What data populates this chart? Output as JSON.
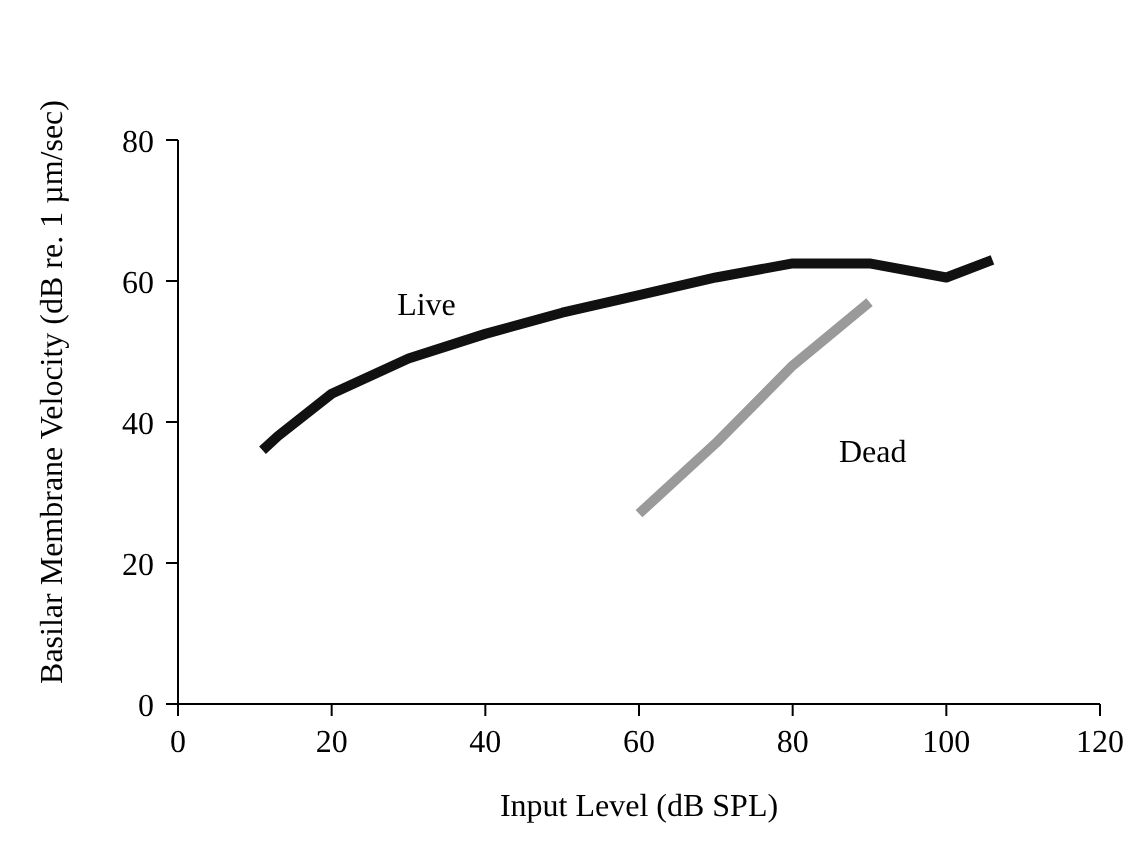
{
  "chart_data": {
    "type": "line",
    "xlabel": "Input Level (dB SPL)",
    "ylabel": "Basilar Membrane Velocity (dB re. 1 µm/sec)",
    "xlim": [
      0,
      120
    ],
    "xticks": [
      0,
      20,
      40,
      60,
      80,
      100,
      120
    ],
    "ylim": [
      0,
      80
    ],
    "yticks": [
      0,
      20,
      40,
      60,
      80
    ],
    "grid": false,
    "marker": "none",
    "line_style": "solid",
    "series": [
      {
        "name": "Live",
        "color": "#111111",
        "x": [
          11,
          13,
          20,
          30,
          40,
          50,
          60,
          70,
          80,
          90,
          100,
          106
        ],
        "values": [
          36,
          38,
          44,
          49,
          52.5,
          55.5,
          58,
          60.5,
          62.5,
          62.5,
          60.5,
          63
        ]
      },
      {
        "name": "Dead",
        "color": "#9a9a9a",
        "x": [
          60,
          70,
          80,
          90
        ],
        "values": [
          27,
          37,
          48,
          57
        ]
      }
    ]
  }
}
